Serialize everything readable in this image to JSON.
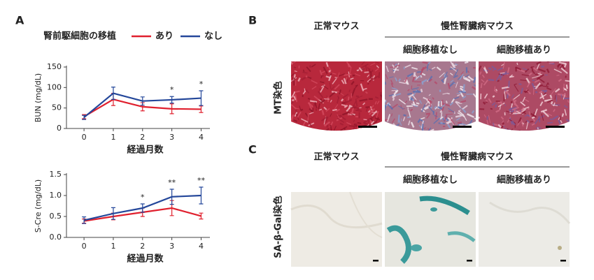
{
  "panel_labels": [
    "A",
    "B",
    "C"
  ],
  "chart_data": [
    {
      "type": "line",
      "legend_title": "腎前駆細胞の移植",
      "xlabel": "経過月数",
      "ylabel": "BUN (mg/dL)",
      "x": [
        0,
        1,
        2,
        3,
        4
      ],
      "xlim": [
        -0.6,
        4.3
      ],
      "xticks": [
        0,
        1,
        2,
        3,
        4
      ],
      "ylim": [
        0,
        150
      ],
      "yticks": [
        0,
        50,
        100,
        150
      ],
      "series": [
        {
          "name": "あり",
          "color": "#e0202e",
          "values": [
            29,
            71,
            53,
            48,
            47
          ],
          "error": [
            5,
            15,
            10,
            12,
            8
          ]
        },
        {
          "name": "なし",
          "color": "#24479a",
          "values": [
            27,
            86,
            67,
            70,
            74
          ],
          "error": [
            5,
            15,
            10,
            8,
            18
          ]
        }
      ],
      "annotations": [
        {
          "x": 3,
          "label": "*"
        },
        {
          "x": 4,
          "label": "*"
        }
      ]
    },
    {
      "type": "line",
      "xlabel": "経過月数",
      "ylabel": "S-Cre (mg/dL)",
      "x": [
        0,
        1,
        2,
        3,
        4
      ],
      "xlim": [
        -0.6,
        4.3
      ],
      "xticks": [
        0,
        1,
        2,
        3,
        4
      ],
      "ylim": [
        0,
        1.5
      ],
      "yticks": [
        {
          "value": 0,
          "label": "0.0"
        },
        {
          "value": 0.5,
          "label": "0.5"
        },
        {
          "value": 1,
          "label": "1.0"
        },
        {
          "value": 1.5,
          "label": "1.5"
        }
      ],
      "series": [
        {
          "color": "#e0202e",
          "values": [
            0.39,
            0.5,
            0.6,
            0.7,
            0.51
          ],
          "error": [
            0.05,
            0.08,
            0.1,
            0.18,
            0.07
          ]
        },
        {
          "color": "#24479a",
          "values": [
            0.41,
            0.57,
            0.7,
            0.97,
            1.0
          ],
          "error": [
            0.08,
            0.14,
            0.1,
            0.18,
            0.2
          ]
        }
      ],
      "annotations": [
        {
          "x": 2,
          "label": "*"
        },
        {
          "x": 3,
          "label": "**"
        },
        {
          "x": 4,
          "label": "**"
        }
      ]
    }
  ],
  "panel_b": {
    "row_label": "MT染色",
    "col_headers": [
      "正常マウス",
      "慢性腎臓病マウス"
    ],
    "sub_headers": [
      "細胞移植なし",
      "細胞移植あり"
    ]
  },
  "panel_c": {
    "row_label": "SA-β-Gal染色",
    "col_headers": [
      "正常マウス",
      "慢性腎臓病マウス"
    ],
    "sub_headers": [
      "細胞移植なし",
      "細胞移植あり"
    ]
  }
}
